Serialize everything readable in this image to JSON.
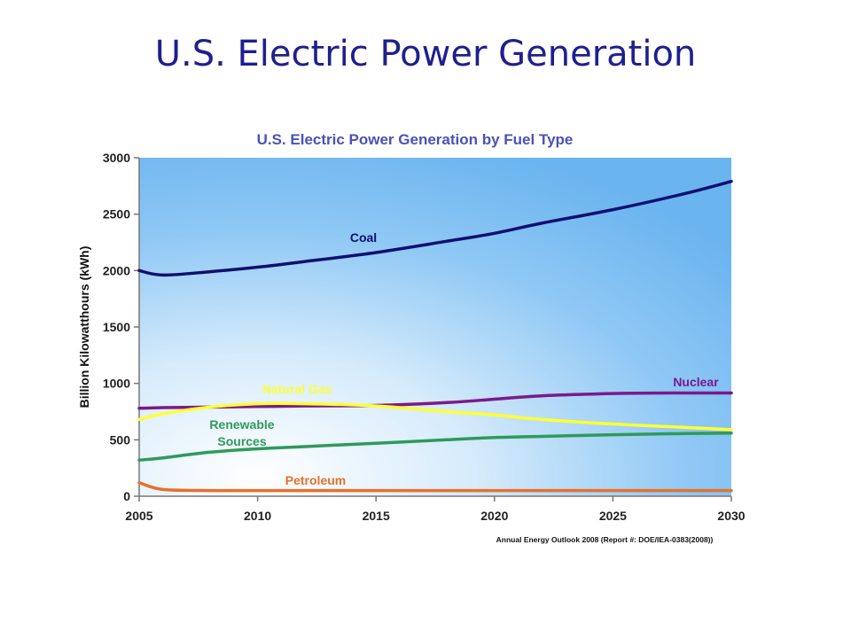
{
  "slide": {
    "title": "U.S. Electric Power Generation"
  },
  "chart_data": {
    "type": "line",
    "title": "U.S. Electric Power Generation by Fuel Type",
    "xlabel": "",
    "ylabel": "Billion Kilowatthours (kWh)",
    "xlim": [
      2005,
      2030
    ],
    "ylim": [
      0,
      3000
    ],
    "x_ticks": [
      "2005",
      "2010",
      "2015",
      "2020",
      "2025",
      "2030"
    ],
    "y_ticks": [
      "0",
      "500",
      "1000",
      "1500",
      "2000",
      "2500",
      "3000"
    ],
    "grid": false,
    "source": "Annual Energy Outlook 2008 (Report #: DOE/IEA-0383(2008))",
    "x": [
      2005,
      2006,
      2008,
      2010,
      2012,
      2015,
      2018,
      2020,
      2022,
      2025,
      2028,
      2030
    ],
    "series": [
      {
        "name": "Coal",
        "color": "#101070",
        "values": [
          2000,
          1960,
          1990,
          2030,
          2080,
          2160,
          2260,
          2330,
          2420,
          2540,
          2680,
          2790
        ]
      },
      {
        "name": "Nuclear",
        "color": "#7a1a8a",
        "values": [
          780,
          785,
          790,
          795,
          800,
          805,
          830,
          860,
          890,
          910,
          915,
          915
        ]
      },
      {
        "name": "Natural Gas",
        "color": "#ffff33",
        "values": [
          680,
          730,
          790,
          820,
          820,
          800,
          750,
          720,
          680,
          640,
          610,
          590
        ]
      },
      {
        "name": "Renewable Sources",
        "color": "#2e9a5a",
        "values": [
          320,
          340,
          390,
          420,
          440,
          470,
          500,
          520,
          530,
          545,
          555,
          560
        ]
      },
      {
        "name": "Petroleum",
        "color": "#e8702a",
        "values": [
          120,
          60,
          50,
          50,
          50,
          50,
          50,
          50,
          50,
          50,
          50,
          50
        ]
      }
    ],
    "labels": {
      "coal": "Coal",
      "nuclear": "Nuclear",
      "natural_gas": "Natural Gas",
      "renewable_1": "Renewable",
      "renewable_2": "Sources",
      "petroleum": "Petroleum"
    }
  }
}
